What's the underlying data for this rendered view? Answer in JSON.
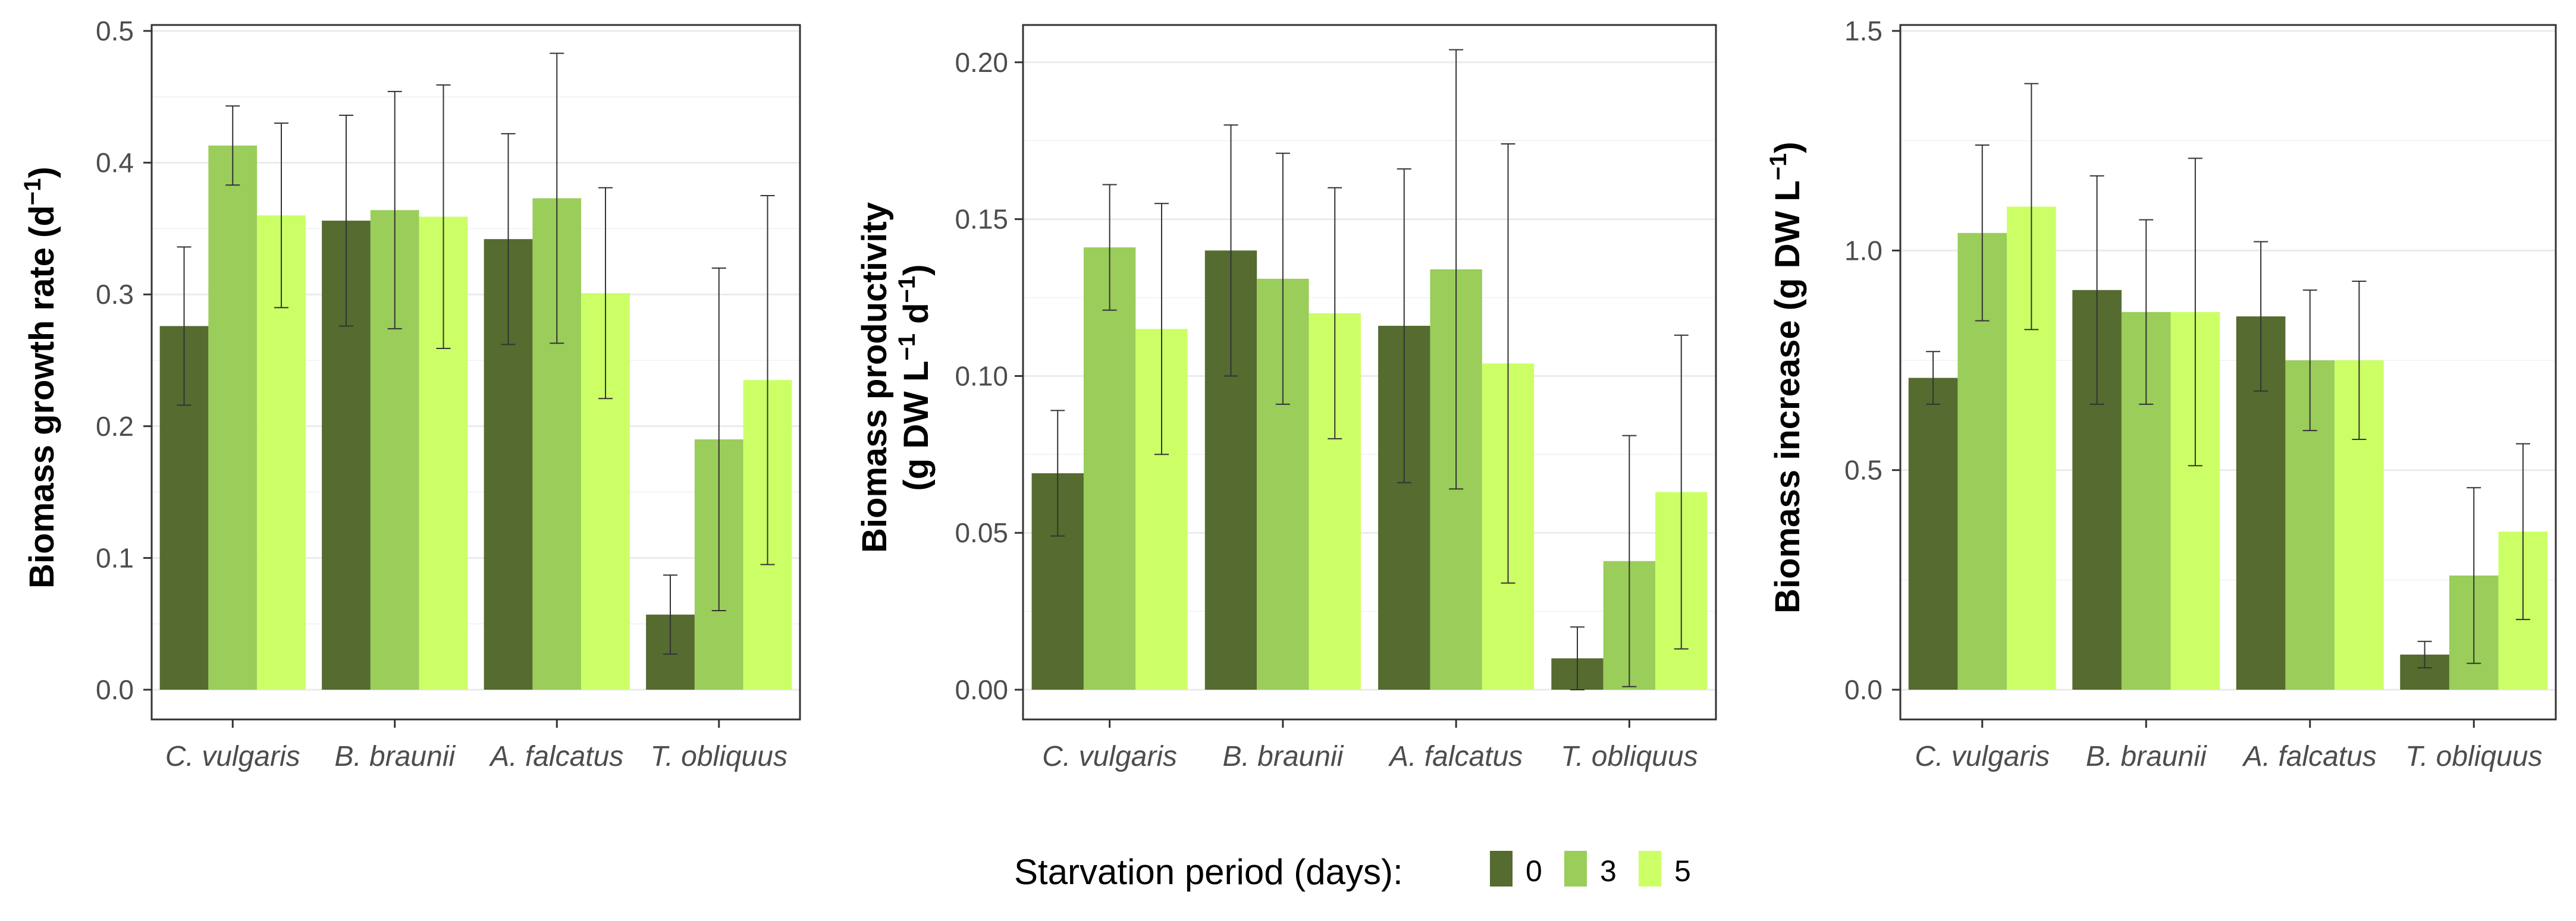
{
  "colors": {
    "day0": "#556b2f",
    "day3": "#9acd5a",
    "day5": "#ccff66",
    "panel_border": "#333333",
    "grid": "#ebebeb",
    "error_bar": "#333333"
  },
  "legend": {
    "title": "Starvation period (days):",
    "entries": [
      "0",
      "3",
      "5"
    ]
  },
  "chart_data": [
    {
      "type": "bar",
      "title": "",
      "xlabel": "",
      "ylabel_main": "Biomass growth rate (d",
      "ylabel_sup": "−1",
      "ylabel_tail": ")",
      "categories": [
        "C. vulgaris",
        "B. braunii",
        "A. falcatus",
        "T. obliquus"
      ],
      "ylim": [
        0,
        0.5
      ],
      "yticks": [
        0.0,
        0.1,
        0.2,
        0.3,
        0.4,
        0.5
      ],
      "ytick_labels": [
        "0.0",
        "0.1",
        "0.2",
        "0.3",
        "0.4",
        "0.5"
      ],
      "series": [
        {
          "name": "0",
          "values": [
            0.276,
            0.356,
            0.342,
            0.057
          ],
          "lower": [
            0.216,
            0.276,
            0.262,
            0.027
          ],
          "upper": [
            0.336,
            0.436,
            0.422,
            0.087
          ]
        },
        {
          "name": "3",
          "values": [
            0.413,
            0.364,
            0.373,
            0.19
          ],
          "lower": [
            0.383,
            0.274,
            0.263,
            0.06
          ],
          "upper": [
            0.443,
            0.454,
            0.483,
            0.32
          ]
        },
        {
          "name": "5",
          "values": [
            0.36,
            0.359,
            0.301,
            0.235
          ],
          "lower": [
            0.29,
            0.259,
            0.221,
            0.095
          ],
          "upper": [
            0.43,
            0.459,
            0.381,
            0.375
          ]
        }
      ]
    },
    {
      "type": "bar",
      "title": "",
      "xlabel": "",
      "ylabel_line1": "Biomass productivity",
      "ylabel_main": "(g DW L",
      "ylabel_sup": "−1",
      "ylabel_mid": " d",
      "ylabel_sup2": "−1",
      "ylabel_tail": ")",
      "categories": [
        "C. vulgaris",
        "B. braunii",
        "A. falcatus",
        "T. obliquus"
      ],
      "ylim": [
        0,
        0.21
      ],
      "yticks": [
        0.0,
        0.05,
        0.1,
        0.15,
        0.2
      ],
      "ytick_labels": [
        "0.00",
        "0.05",
        "0.10",
        "0.15",
        "0.20"
      ],
      "series": [
        {
          "name": "0",
          "values": [
            0.069,
            0.14,
            0.116,
            0.01
          ],
          "lower": [
            0.049,
            0.1,
            0.066,
            0.0
          ],
          "upper": [
            0.089,
            0.18,
            0.166,
            0.02
          ]
        },
        {
          "name": "3",
          "values": [
            0.141,
            0.131,
            0.134,
            0.041
          ],
          "lower": [
            0.121,
            0.091,
            0.064,
            0.001
          ],
          "upper": [
            0.161,
            0.171,
            0.204,
            0.081
          ]
        },
        {
          "name": "5",
          "values": [
            0.115,
            0.12,
            0.104,
            0.063
          ],
          "lower": [
            0.075,
            0.08,
            0.034,
            0.013
          ],
          "upper": [
            0.155,
            0.16,
            0.174,
            0.113
          ]
        }
      ]
    },
    {
      "type": "bar",
      "title": "",
      "xlabel": "",
      "ylabel_main": "Biomass increase (g DW L",
      "ylabel_sup": "−1",
      "ylabel_tail": ")",
      "categories": [
        "C. vulgaris",
        "B. braunii",
        "A. falcatus",
        "T. obliquus"
      ],
      "ylim": [
        0,
        1.5
      ],
      "yticks": [
        0.0,
        0.5,
        1.0,
        1.5
      ],
      "ytick_labels": [
        "0.0",
        "0.5",
        "1.0",
        "1.5"
      ],
      "series": [
        {
          "name": "0",
          "values": [
            0.71,
            0.91,
            0.85,
            0.08
          ],
          "lower": [
            0.65,
            0.65,
            0.68,
            0.05
          ],
          "upper": [
            0.77,
            1.17,
            1.02,
            0.11
          ]
        },
        {
          "name": "3",
          "values": [
            1.04,
            0.86,
            0.75,
            0.26
          ],
          "lower": [
            0.84,
            0.65,
            0.59,
            0.06
          ],
          "upper": [
            1.24,
            1.07,
            0.91,
            0.46
          ]
        },
        {
          "name": "5",
          "values": [
            1.1,
            0.86,
            0.75,
            0.36
          ],
          "lower": [
            0.82,
            0.51,
            0.57,
            0.16
          ],
          "upper": [
            1.38,
            1.21,
            0.93,
            0.56
          ]
        }
      ]
    }
  ]
}
